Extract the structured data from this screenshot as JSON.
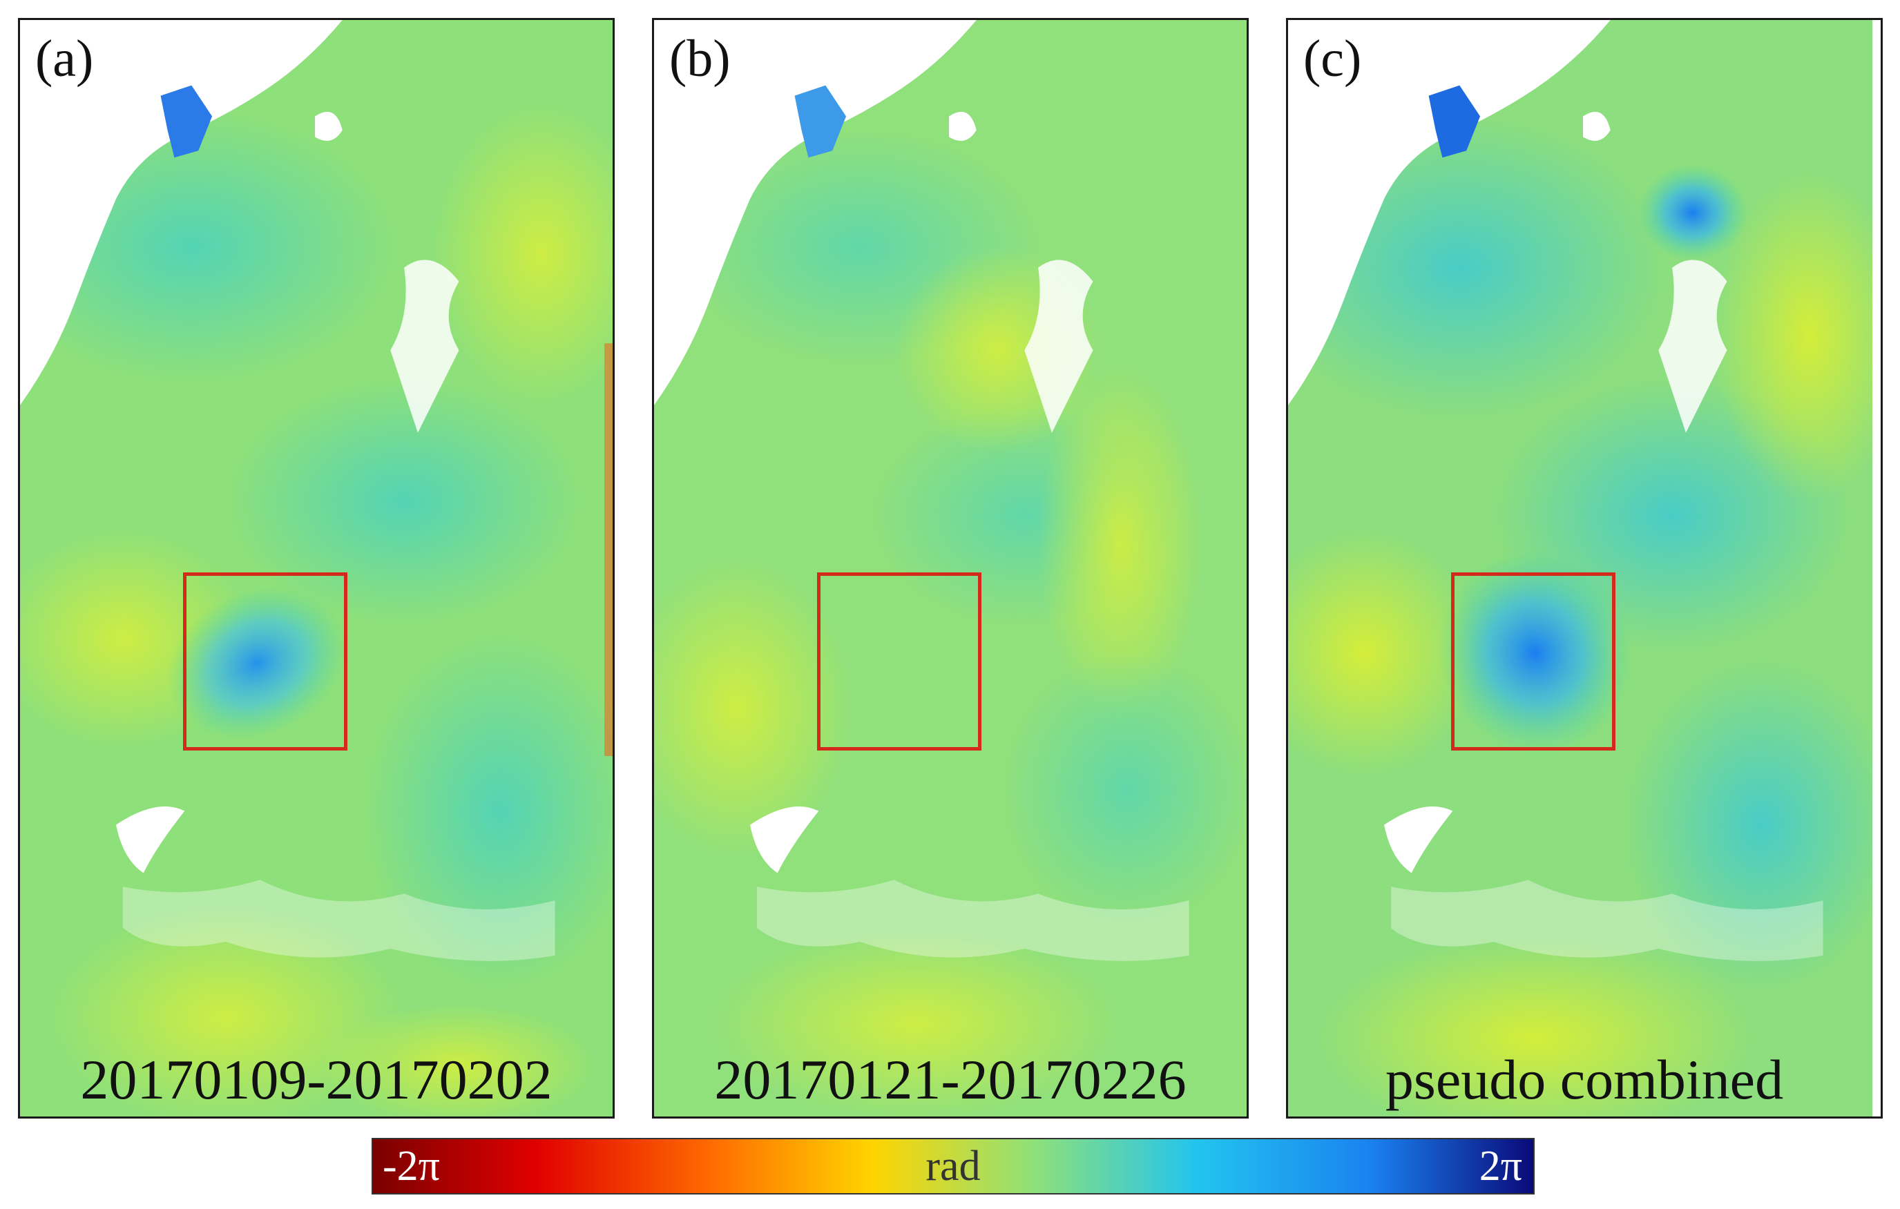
{
  "panels": [
    {
      "label": "(a)",
      "caption": "20170109-20170202"
    },
    {
      "label": "(b)",
      "caption": "20170121-20170226"
    },
    {
      "label": "(c)",
      "caption": "pseudo combined"
    }
  ],
  "colorbar": {
    "min_label": "-2π",
    "unit_label": "rad",
    "max_label": "2π",
    "colors": [
      "#7a0000",
      "#e00000",
      "#ff6a00",
      "#ffd400",
      "#8ee07a",
      "#22c4ee",
      "#1a82f0",
      "#0a0a78"
    ]
  },
  "colors": {
    "roi_box": "#d42a1c",
    "background_phase": "#8ee07a",
    "masked": "#ffffff"
  }
}
